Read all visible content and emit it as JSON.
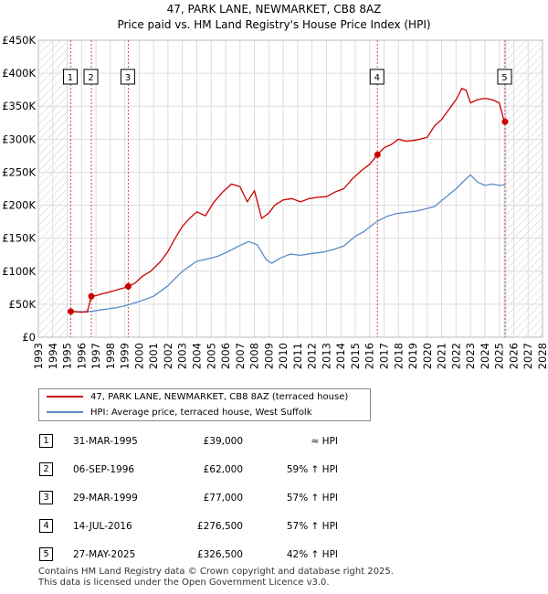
{
  "title": "47, PARK LANE, NEWMARKET, CB8 8AZ",
  "subtitle": "Price paid vs. HM Land Registry's House Price Index (HPI)",
  "colors": {
    "property": "#cc0000",
    "hpi": "#5a8ac6",
    "hatch": "#cccccc",
    "marker_line": "#dd4444",
    "shade": "#dde6f3"
  },
  "chart_data": {
    "type": "line",
    "title": "47, PARK LANE, NEWMARKET, CB8 8AZ",
    "subtitle": "Price paid vs. HM Land Registry's House Price Index (HPI)",
    "xlim": [
      1993,
      2028
    ],
    "ylim": [
      0,
      450000
    ],
    "x_ticks": [
      1993,
      1994,
      1995,
      1996,
      1997,
      1998,
      1999,
      2000,
      2001,
      2002,
      2003,
      2004,
      2005,
      2006,
      2007,
      2008,
      2009,
      2010,
      2011,
      2012,
      2013,
      2014,
      2015,
      2016,
      2017,
      2018,
      2019,
      2020,
      2021,
      2022,
      2023,
      2024,
      2025,
      2026,
      2027,
      2028
    ],
    "y_ticks": [
      0,
      50000,
      100000,
      150000,
      200000,
      250000,
      300000,
      350000,
      400000,
      450000
    ],
    "y_tick_labels": [
      "£0",
      "£50K",
      "£100K",
      "£150K",
      "£200K",
      "£250K",
      "£300K",
      "£350K",
      "£400K",
      "£450K"
    ],
    "hatched_regions": [
      [
        1993,
        1995.25
      ],
      [
        2025.4,
        2028
      ]
    ],
    "series": [
      {
        "name": "47, PARK LANE, NEWMARKET, CB8 8AZ (terraced house)",
        "color": "#cc0000",
        "x": [
          1995.25,
          1995.6,
          1996.0,
          1996.4,
          1996.68,
          1997.0,
          1997.5,
          1998.0,
          1998.5,
          1999.0,
          1999.24,
          1999.7,
          2000.2,
          2000.8,
          2001.5,
          2002.0,
          2002.5,
          2003.0,
          2003.5,
          2004.0,
          2004.6,
          2005.2,
          2005.8,
          2006.4,
          2007.0,
          2007.5,
          2008.0,
          2008.5,
          2009.0,
          2009.4,
          2010.0,
          2010.6,
          2011.2,
          2011.8,
          2012.4,
          2013.0,
          2013.6,
          2014.2,
          2014.8,
          2015.4,
          2016.0,
          2016.54,
          2017.0,
          2017.5,
          2018.0,
          2018.5,
          2019.0,
          2019.5,
          2020.0,
          2020.5,
          2021.0,
          2021.5,
          2022.0,
          2022.4,
          2022.7,
          2023.0,
          2023.5,
          2024.0,
          2024.5,
          2025.0,
          2025.3,
          2025.4
        ],
        "y": [
          39000,
          38500,
          38000,
          38500,
          62000,
          63000,
          66000,
          69000,
          72000,
          75000,
          77000,
          82000,
          92000,
          100000,
          115000,
          130000,
          150000,
          168000,
          180000,
          190000,
          184000,
          205000,
          220000,
          232000,
          228000,
          205000,
          222000,
          180000,
          188000,
          200000,
          208000,
          210000,
          205000,
          210000,
          212000,
          213000,
          220000,
          225000,
          240000,
          252000,
          262000,
          276500,
          287000,
          292000,
          300000,
          297000,
          298000,
          300000,
          303000,
          320000,
          330000,
          345000,
          360000,
          377000,
          374000,
          355000,
          360000,
          362000,
          360000,
          355000,
          330000,
          326500
        ]
      },
      {
        "name": "HPI: Average price, terraced house, West Suffolk",
        "color": "#5a8ac6",
        "x": [
          1995.25,
          1996.0,
          1996.68,
          1997.5,
          1998.5,
          1999.24,
          2000.0,
          2001.0,
          2002.0,
          2003.0,
          2004.0,
          2004.8,
          2005.5,
          2006.2,
          2006.9,
          2007.6,
          2008.2,
          2008.8,
          2009.2,
          2009.8,
          2010.5,
          2011.2,
          2012.0,
          2012.8,
          2013.5,
          2014.2,
          2015.0,
          2015.6,
          2016.0,
          2016.54,
          2017.2,
          2017.8,
          2018.5,
          2019.2,
          2019.8,
          2020.5,
          2021.0,
          2021.5,
          2022.0,
          2022.5,
          2023.0,
          2023.5,
          2024.0,
          2024.5,
          2025.0,
          2025.4
        ],
        "y": [
          39000,
          38500,
          39000,
          42000,
          45000,
          49000,
          54000,
          62000,
          78000,
          100000,
          115000,
          119000,
          123000,
          130000,
          138000,
          145000,
          140000,
          118000,
          112000,
          120000,
          126000,
          124000,
          127000,
          129000,
          133000,
          138000,
          153000,
          160000,
          167000,
          176000,
          183000,
          187000,
          189000,
          191000,
          194000,
          198000,
          207000,
          216000,
          225000,
          236000,
          246000,
          235000,
          230000,
          232000,
          230000,
          231000
        ]
      }
    ],
    "sale_markers": [
      {
        "label": "1",
        "x": 1995.25,
        "y": 39000
      },
      {
        "label": "2",
        "x": 1996.68,
        "y": 62000
      },
      {
        "label": "3",
        "x": 1999.24,
        "y": 77000
      },
      {
        "label": "4",
        "x": 2016.54,
        "y": 276500
      },
      {
        "label": "5",
        "x": 2025.4,
        "y": 326500
      }
    ]
  },
  "legend": {
    "property_label": "47, PARK LANE, NEWMARKET, CB8 8AZ (terraced house)",
    "hpi_label": "HPI: Average price, terraced house, West Suffolk"
  },
  "sales": [
    {
      "num": "1",
      "date": "31-MAR-1995",
      "price": "£39,000",
      "relation": "≈ HPI"
    },
    {
      "num": "2",
      "date": "06-SEP-1996",
      "price": "£62,000",
      "relation": "59% ↑ HPI"
    },
    {
      "num": "3",
      "date": "29-MAR-1999",
      "price": "£77,000",
      "relation": "57% ↑ HPI"
    },
    {
      "num": "4",
      "date": "14-JUL-2016",
      "price": "£276,500",
      "relation": "57% ↑ HPI"
    },
    {
      "num": "5",
      "date": "27-MAY-2025",
      "price": "£326,500",
      "relation": "42% ↑ HPI"
    }
  ],
  "footer": {
    "line1": "Contains HM Land Registry data © Crown copyright and database right 2025.",
    "line2": "This data is licensed under the Open Government Licence v3.0."
  }
}
